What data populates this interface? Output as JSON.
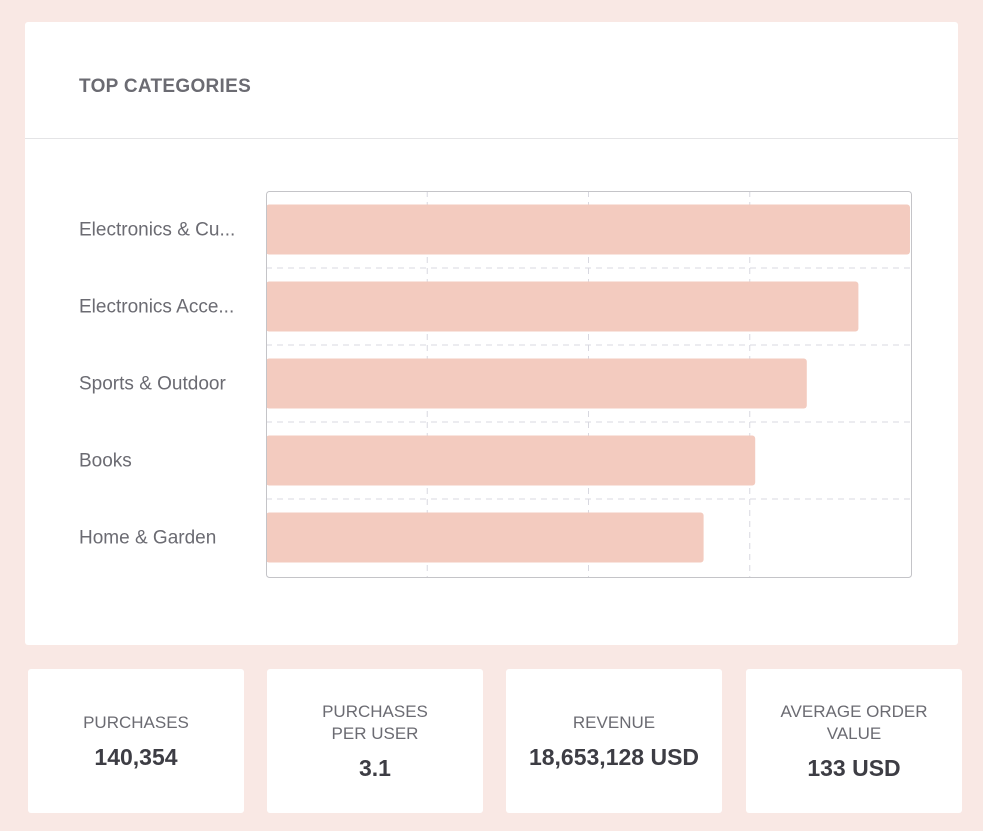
{
  "chart_data": {
    "type": "bar",
    "orientation": "horizontal",
    "title": "TOP CATEGORIES",
    "categories": [
      "Electronics & Cu...",
      "Electronics Acce...",
      "Sports & Outdoor",
      "Books",
      "Home & Garden"
    ],
    "values": [
      100,
      92,
      84,
      76,
      68
    ],
    "xlim": [
      0,
      100
    ],
    "grid": true,
    "legend": "none",
    "bar_color": "#f3cbbf"
  },
  "stats": [
    {
      "label": "PURCHASES",
      "value": "140,354"
    },
    {
      "label": "PURCHASES PER USER",
      "value": "3.1"
    },
    {
      "label": "REVENUE",
      "value": "18,653,128 USD"
    },
    {
      "label": "AVERAGE ORDER VALUE",
      "value": "133 USD"
    }
  ]
}
